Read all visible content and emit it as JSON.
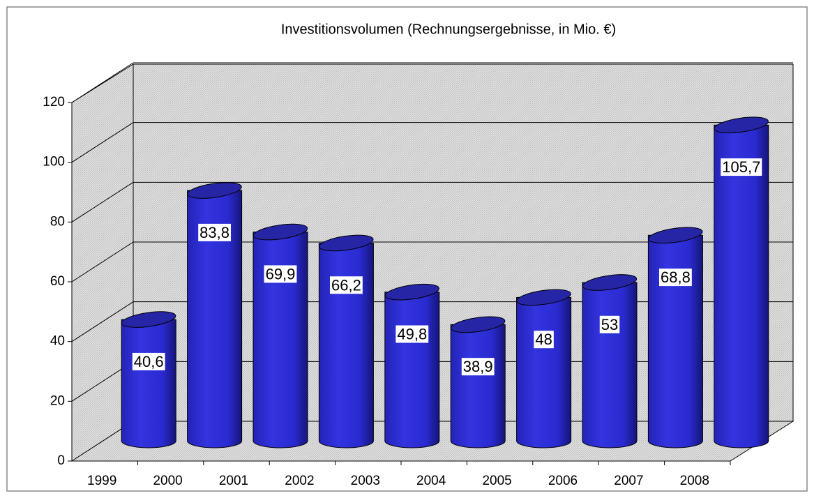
{
  "chart_data": {
    "type": "bar",
    "title": "Investitionsvolumen (Rechnungsergebnisse, in Mio. €)",
    "categories": [
      "1999",
      "2000",
      "2001",
      "2002",
      "2003",
      "2004",
      "2005",
      "2006",
      "2007",
      "2008"
    ],
    "values": [
      40.6,
      83.8,
      69.9,
      66.2,
      49.8,
      38.9,
      48,
      53,
      68.8,
      105.7
    ],
    "value_labels": [
      "40,6",
      "83,8",
      "69,9",
      "66,2",
      "49,8",
      "38,9",
      "48",
      "53",
      "68,8",
      "105,7"
    ],
    "color": "#2a2ad0",
    "ylim": [
      0,
      120
    ],
    "yticks": [
      0,
      20,
      40,
      60,
      80,
      100,
      120
    ],
    "grid": true
  }
}
